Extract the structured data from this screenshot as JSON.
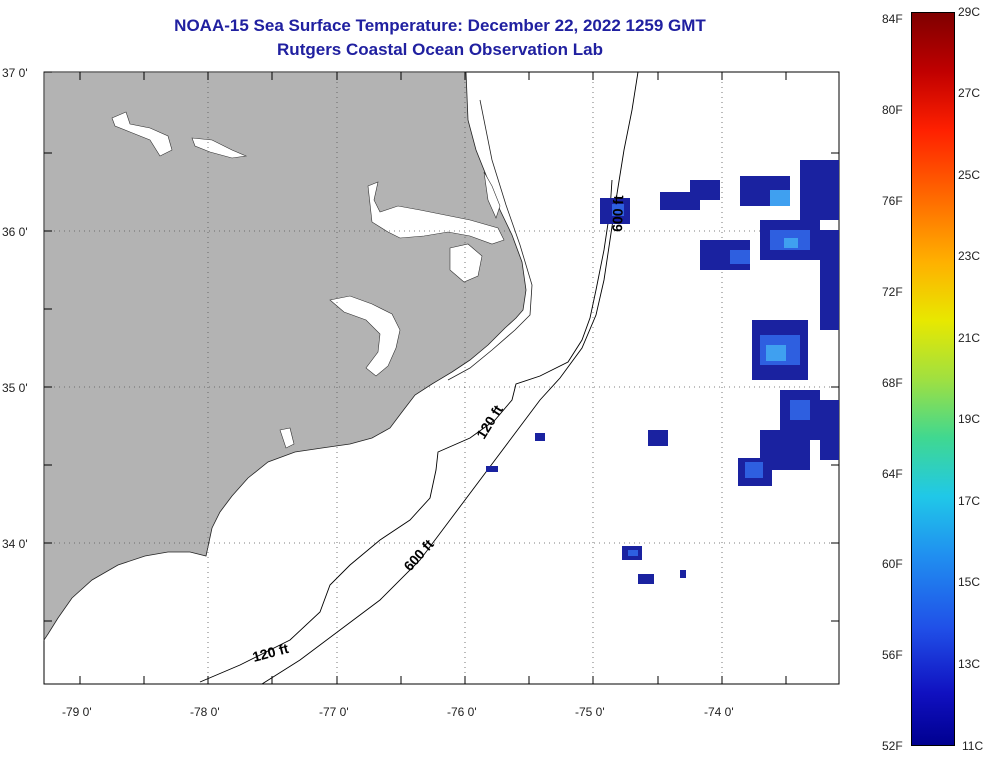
{
  "title": {
    "line1": "NOAA-15 Sea Surface Temperature:  December 22, 2022 1259 GMT",
    "line2": "Rutgers Coastal Ocean Observation Lab"
  },
  "colors": {
    "land": "#b3b3b3",
    "title_text": "#2020a0",
    "grid": "#666666",
    "sst_dark": "#1a22a0",
    "sst_mid": "#2e5fe0",
    "sst_light": "#3fa0f0"
  },
  "lat_labels": [
    "37 0'",
    "36 0'",
    "35 0'",
    "34 0'"
  ],
  "lon_labels": [
    "-79 0'",
    "-78 0'",
    "-77 0'",
    "-76 0'",
    "-75 0'",
    "-74 0'"
  ],
  "contour_labels": [
    "120 ft",
    "600 ft",
    "600 ft",
    "120 ft"
  ],
  "colorbar": {
    "min_c": 11,
    "max_c": 29,
    "fahrenheit_labels": [
      "84F",
      "80F",
      "76F",
      "72F",
      "68F",
      "64F",
      "60F",
      "56F",
      "52F"
    ],
    "celsius_labels": [
      "29C",
      "27C",
      "25C",
      "23C",
      "21C",
      "19C",
      "17C",
      "15C",
      "13C",
      "11C"
    ]
  }
}
